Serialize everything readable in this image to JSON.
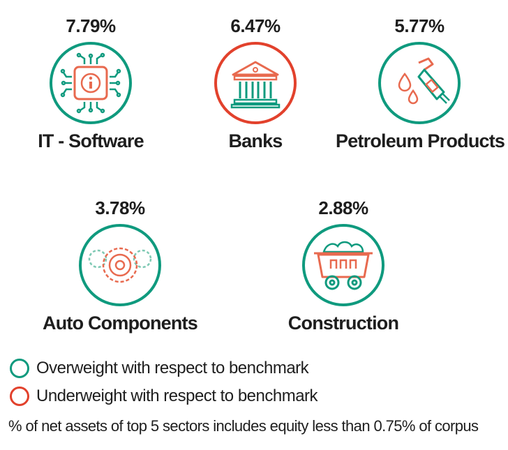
{
  "chart_data": {
    "type": "table",
    "items": [
      {
        "sector": "IT - Software",
        "value_label": "7.79%",
        "value": 7.79,
        "weight": "overweight",
        "icon": "chip-icon"
      },
      {
        "sector": "Banks",
        "value_label": "6.47%",
        "value": 6.47,
        "weight": "underweight",
        "icon": "bank-icon"
      },
      {
        "sector": "Petroleum Products",
        "value_label": "5.77%",
        "value": 5.77,
        "weight": "overweight",
        "icon": "fuel-nozzle-icon"
      },
      {
        "sector": "Auto Components",
        "value_label": "3.78%",
        "value": 3.78,
        "weight": "overweight",
        "icon": "gears-icon"
      },
      {
        "sector": "Construction",
        "value_label": "2.88%",
        "value": 2.88,
        "weight": "overweight",
        "icon": "mine-cart-icon"
      }
    ],
    "legend": [
      {
        "label": "Overweight with respect to benchmark",
        "color": "#0f9a7e"
      },
      {
        "label": "Underweight with respect to benchmark",
        "color": "#e2412c"
      }
    ],
    "footnote": "% of net assets of top 5 sectors includes equity less than 0.75% of corpus"
  },
  "colors": {
    "overweight": "#0f9a7e",
    "underweight": "#e2412c",
    "icon_accent": "#e86a4f"
  }
}
